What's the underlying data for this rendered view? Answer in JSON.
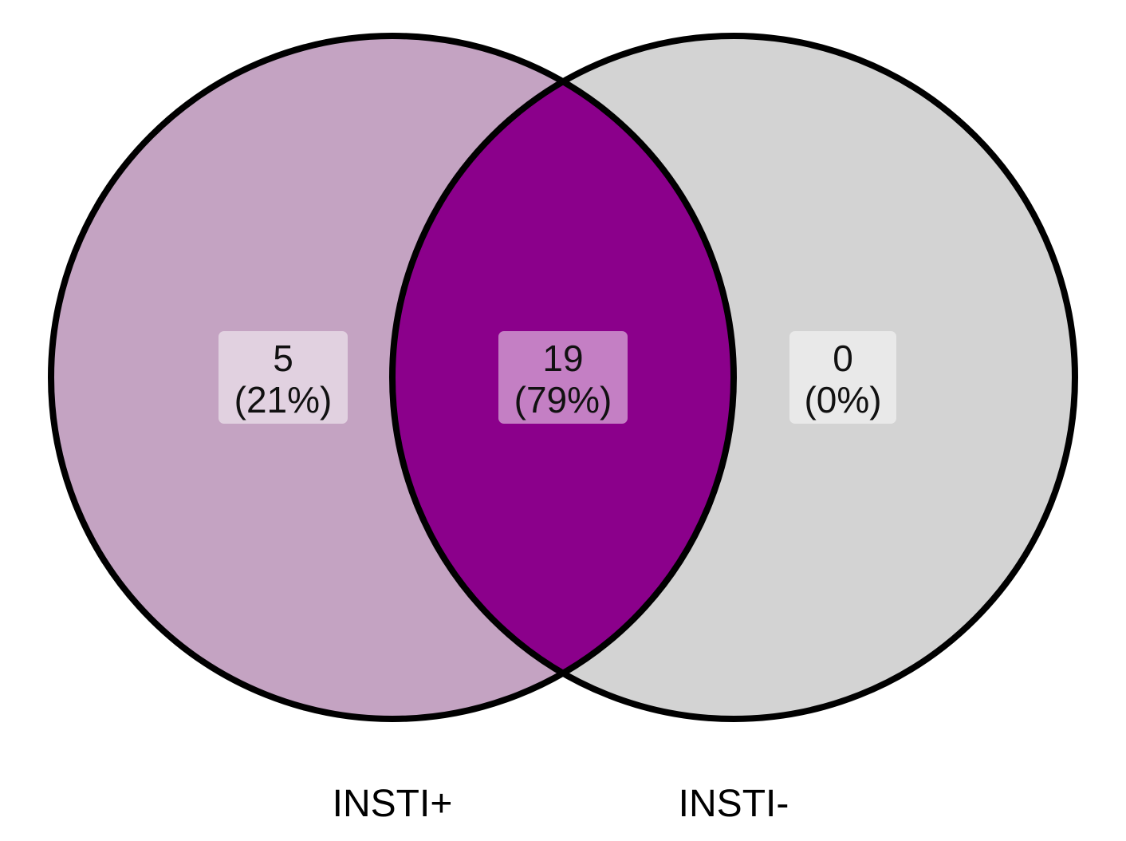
{
  "venn": {
    "sets": [
      {
        "name": "INSTI+",
        "color": "#c4a3c2"
      },
      {
        "name": "INSTI-",
        "color": "#d3d3d3"
      }
    ],
    "intersection_color": "#8b008b",
    "outline_color": "#000000",
    "regions": [
      {
        "id": "only-insti-plus",
        "count": "5",
        "percent": "(21%)",
        "box_color": "#e1d1e0"
      },
      {
        "id": "both",
        "count": "19",
        "percent": "(79%)",
        "box_color": "#c47fc4"
      },
      {
        "id": "only-insti-minus",
        "count": "0",
        "percent": "(0%)",
        "box_color": "#e9e9e9"
      }
    ]
  }
}
